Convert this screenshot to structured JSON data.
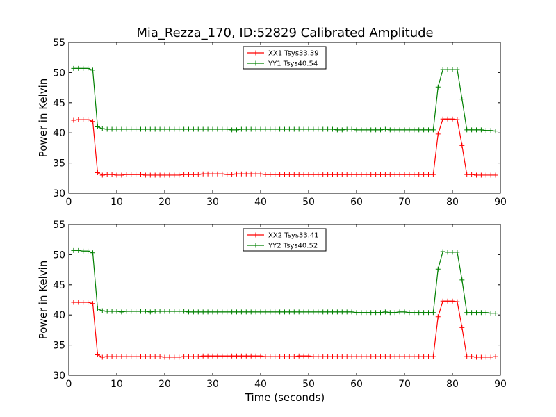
{
  "figure": {
    "title": "Mia_Rezza_170, ID:52829 Calibrated Amplitude",
    "xlabel": "Time (seconds)"
  },
  "chart_data": [
    {
      "type": "line",
      "ylabel": "Power in Kelvin",
      "xlim": [
        0,
        90
      ],
      "ylim": [
        30,
        55
      ],
      "xticks": [
        "0",
        "10",
        "20",
        "30",
        "40",
        "50",
        "60",
        "70",
        "80",
        "90"
      ],
      "yticks": [
        "30",
        "35",
        "40",
        "45",
        "50",
        "55"
      ],
      "legend_position": "top-center",
      "grid": false,
      "x": [
        1,
        2,
        3,
        4,
        5,
        6,
        7,
        8,
        9,
        10,
        11,
        12,
        13,
        14,
        15,
        16,
        17,
        18,
        19,
        20,
        21,
        22,
        23,
        24,
        25,
        26,
        27,
        28,
        29,
        30,
        31,
        32,
        33,
        34,
        35,
        36,
        37,
        38,
        39,
        40,
        41,
        42,
        43,
        44,
        45,
        46,
        47,
        48,
        49,
        50,
        51,
        52,
        53,
        54,
        55,
        56,
        57,
        58,
        59,
        60,
        61,
        62,
        63,
        64,
        65,
        66,
        67,
        68,
        69,
        70,
        71,
        72,
        73,
        74,
        75,
        76,
        77,
        78,
        79,
        80,
        81,
        82,
        83,
        84,
        85,
        86,
        87,
        88,
        89
      ],
      "series": [
        {
          "name": "XX1 Tsys33.39",
          "color": "#ff0000",
          "values": [
            42.1,
            42.2,
            42.2,
            42.2,
            41.9,
            33.4,
            33.0,
            33.1,
            33.1,
            33.0,
            33.0,
            33.1,
            33.1,
            33.1,
            33.1,
            33.0,
            33.0,
            33.0,
            33.0,
            33.0,
            33.0,
            33.0,
            33.0,
            33.1,
            33.1,
            33.1,
            33.1,
            33.2,
            33.2,
            33.2,
            33.2,
            33.2,
            33.1,
            33.1,
            33.2,
            33.2,
            33.2,
            33.2,
            33.2,
            33.2,
            33.1,
            33.1,
            33.1,
            33.1,
            33.1,
            33.1,
            33.1,
            33.1,
            33.1,
            33.1,
            33.1,
            33.1,
            33.1,
            33.1,
            33.1,
            33.1,
            33.1,
            33.1,
            33.1,
            33.1,
            33.1,
            33.1,
            33.1,
            33.1,
            33.1,
            33.1,
            33.1,
            33.1,
            33.1,
            33.1,
            33.1,
            33.1,
            33.1,
            33.1,
            33.1,
            33.1,
            39.8,
            42.3,
            42.3,
            42.3,
            42.2,
            37.9,
            33.1,
            33.1,
            33.0,
            33.0,
            33.0,
            33.0,
            33.0
          ]
        },
        {
          "name": "YY1 Tsys40.54",
          "color": "#008000",
          "values": [
            50.7,
            50.7,
            50.7,
            50.7,
            50.4,
            41.0,
            40.7,
            40.6,
            40.6,
            40.6,
            40.6,
            40.6,
            40.6,
            40.6,
            40.6,
            40.6,
            40.6,
            40.6,
            40.6,
            40.6,
            40.6,
            40.6,
            40.6,
            40.6,
            40.6,
            40.6,
            40.6,
            40.6,
            40.6,
            40.6,
            40.6,
            40.6,
            40.6,
            40.5,
            40.5,
            40.6,
            40.6,
            40.6,
            40.6,
            40.6,
            40.6,
            40.6,
            40.6,
            40.6,
            40.6,
            40.6,
            40.6,
            40.6,
            40.6,
            40.6,
            40.6,
            40.6,
            40.6,
            40.6,
            40.6,
            40.5,
            40.5,
            40.6,
            40.6,
            40.5,
            40.5,
            40.5,
            40.5,
            40.5,
            40.5,
            40.6,
            40.5,
            40.5,
            40.5,
            40.5,
            40.5,
            40.5,
            40.5,
            40.5,
            40.5,
            40.5,
            47.6,
            50.5,
            50.5,
            50.5,
            50.5,
            45.6,
            40.5,
            40.5,
            40.5,
            40.5,
            40.4,
            40.4,
            40.3
          ]
        }
      ]
    },
    {
      "type": "line",
      "ylabel": "Power in Kelvin",
      "xlim": [
        0,
        90
      ],
      "ylim": [
        30,
        55
      ],
      "xticks": [
        "0",
        "10",
        "20",
        "30",
        "40",
        "50",
        "60",
        "70",
        "80",
        "90"
      ],
      "yticks": [
        "30",
        "35",
        "40",
        "45",
        "50",
        "55"
      ],
      "legend_position": "top-center",
      "grid": false,
      "x": [
        1,
        2,
        3,
        4,
        5,
        6,
        7,
        8,
        9,
        10,
        11,
        12,
        13,
        14,
        15,
        16,
        17,
        18,
        19,
        20,
        21,
        22,
        23,
        24,
        25,
        26,
        27,
        28,
        29,
        30,
        31,
        32,
        33,
        34,
        35,
        36,
        37,
        38,
        39,
        40,
        41,
        42,
        43,
        44,
        45,
        46,
        47,
        48,
        49,
        50,
        51,
        52,
        53,
        54,
        55,
        56,
        57,
        58,
        59,
        60,
        61,
        62,
        63,
        64,
        65,
        66,
        67,
        68,
        69,
        70,
        71,
        72,
        73,
        74,
        75,
        76,
        77,
        78,
        79,
        80,
        81,
        82,
        83,
        84,
        85,
        86,
        87,
        88,
        89
      ],
      "series": [
        {
          "name": "XX2 Tsys33.41",
          "color": "#ff0000",
          "values": [
            42.1,
            42.1,
            42.1,
            42.1,
            41.9,
            33.4,
            33.0,
            33.1,
            33.1,
            33.1,
            33.1,
            33.1,
            33.1,
            33.1,
            33.1,
            33.1,
            33.1,
            33.1,
            33.1,
            33.0,
            33.0,
            33.0,
            33.0,
            33.1,
            33.1,
            33.1,
            33.1,
            33.2,
            33.2,
            33.2,
            33.2,
            33.2,
            33.2,
            33.2,
            33.2,
            33.2,
            33.2,
            33.2,
            33.2,
            33.2,
            33.1,
            33.1,
            33.1,
            33.1,
            33.1,
            33.1,
            33.1,
            33.2,
            33.2,
            33.2,
            33.1,
            33.1,
            33.1,
            33.1,
            33.1,
            33.1,
            33.1,
            33.1,
            33.1,
            33.1,
            33.1,
            33.1,
            33.1,
            33.1,
            33.1,
            33.1,
            33.1,
            33.1,
            33.1,
            33.1,
            33.1,
            33.1,
            33.1,
            33.1,
            33.1,
            33.1,
            39.7,
            42.3,
            42.3,
            42.3,
            42.2,
            37.9,
            33.1,
            33.1,
            33.0,
            33.0,
            33.0,
            33.0,
            33.1
          ]
        },
        {
          "name": "YY2 Tsys40.52",
          "color": "#008000",
          "values": [
            50.7,
            50.7,
            50.6,
            50.6,
            50.3,
            41.0,
            40.7,
            40.6,
            40.6,
            40.6,
            40.5,
            40.6,
            40.6,
            40.6,
            40.6,
            40.6,
            40.5,
            40.6,
            40.6,
            40.6,
            40.6,
            40.6,
            40.6,
            40.6,
            40.5,
            40.5,
            40.5,
            40.5,
            40.5,
            40.5,
            40.5,
            40.5,
            40.5,
            40.5,
            40.5,
            40.5,
            40.5,
            40.5,
            40.5,
            40.5,
            40.5,
            40.5,
            40.5,
            40.5,
            40.5,
            40.5,
            40.5,
            40.5,
            40.5,
            40.5,
            40.5,
            40.5,
            40.5,
            40.5,
            40.5,
            40.5,
            40.5,
            40.5,
            40.5,
            40.4,
            40.4,
            40.4,
            40.4,
            40.4,
            40.4,
            40.5,
            40.4,
            40.4,
            40.5,
            40.5,
            40.4,
            40.4,
            40.4,
            40.4,
            40.4,
            40.4,
            47.6,
            50.5,
            50.4,
            50.4,
            50.4,
            45.8,
            40.4,
            40.4,
            40.4,
            40.4,
            40.4,
            40.3,
            40.3
          ]
        }
      ]
    }
  ]
}
